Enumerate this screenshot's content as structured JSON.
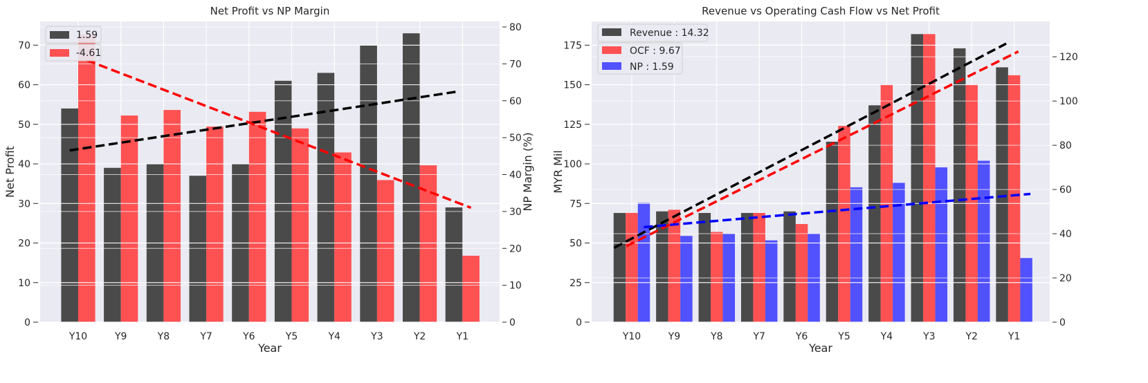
{
  "chart_data": [
    {
      "type": "bar",
      "title": "Net Profit vs NP Margin",
      "xlabel": "Year",
      "ylabel": "Net Profit",
      "y2label": "NP Margin (%)",
      "categories": [
        "Y10",
        "Y9",
        "Y8",
        "Y7",
        "Y6",
        "Y5",
        "Y4",
        "Y3",
        "Y2",
        "Y1"
      ],
      "ylim": [
        0,
        76
      ],
      "y2lim": [
        0,
        81.5
      ],
      "yticks": [
        0,
        10,
        20,
        30,
        40,
        50,
        60,
        70
      ],
      "y2ticks": [
        0,
        10,
        20,
        30,
        40,
        50,
        60,
        70,
        80
      ],
      "grid": true,
      "legend_position": "top-left",
      "series": [
        {
          "name": "1.59",
          "axis": "left",
          "color": "#333333",
          "values": [
            54,
            39,
            40,
            37,
            40,
            61,
            63,
            70,
            73,
            29
          ],
          "trend": [
            43.4,
            58.3
          ]
        },
        {
          "name": "-4.61",
          "axis": "right",
          "color": "#ff3b3b",
          "values": [
            78,
            56,
            57.5,
            53,
            57,
            52.5,
            46,
            38.5,
            42.5,
            18
          ],
          "trend": [
            71,
            31
          ]
        }
      ]
    },
    {
      "type": "bar",
      "title": "Revenue vs Operating Cash Flow vs Net Profit",
      "xlabel": "Year",
      "ylabel": "MYR Mil",
      "categories": [
        "Y10",
        "Y9",
        "Y8",
        "Y7",
        "Y6",
        "Y5",
        "Y4",
        "Y3",
        "Y2",
        "Y1"
      ],
      "ylim": [
        0,
        190
      ],
      "y2lim": [
        0,
        136
      ],
      "yticks": [
        0,
        25,
        50,
        75,
        100,
        125,
        150,
        175
      ],
      "y2ticks": [
        0,
        20,
        40,
        60,
        80,
        100,
        120
      ],
      "grid": true,
      "legend_position": "top-left",
      "series": [
        {
          "name": "Revenue : 14.32",
          "axis": "left",
          "color": "#333333",
          "values": [
            69,
            70,
            69,
            69,
            70,
            114,
            137,
            182,
            173,
            161
          ],
          "trend": [
            47,
            176
          ]
        },
        {
          "name": "OCF : 9.67",
          "axis": "left",
          "color": "#ff3b3b",
          "values": [
            69,
            71,
            57,
            69,
            62,
            124,
            150,
            182,
            150,
            156
          ],
          "trend": [
            48,
            171
          ]
        },
        {
          "name": "NP : 1.59",
          "axis": "right",
          "color": "#3b3bff",
          "values": [
            54,
            39,
            40,
            37,
            40,
            61,
            63,
            70,
            73,
            29
          ],
          "trend": [
            43,
            58
          ]
        }
      ]
    }
  ]
}
